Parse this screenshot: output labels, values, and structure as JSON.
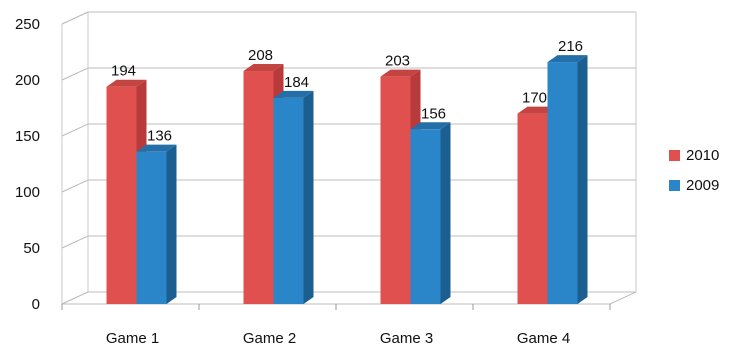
{
  "chart_data": {
    "type": "bar",
    "style": "3d-clustered-column",
    "categories": [
      "Game 1",
      "Game 2",
      "Game 3",
      "Game 4"
    ],
    "series": [
      {
        "name": "2010",
        "values": [
          194,
          208,
          203,
          170
        ],
        "color": "#E0504E",
        "side": "#B83A3A",
        "top": "#C44442"
      },
      {
        "name": "2009",
        "values": [
          136,
          184,
          156,
          216
        ],
        "color": "#2B86C9",
        "side": "#1B5E90",
        "top": "#246FA8"
      }
    ],
    "y_ticks": [
      "0",
      "50",
      "100",
      "150",
      "200",
      "250"
    ],
    "ylim": [
      0,
      250
    ],
    "grid": true,
    "legend_position": "right",
    "data_labels": true,
    "title": "",
    "xlabel": "",
    "ylabel": ""
  }
}
